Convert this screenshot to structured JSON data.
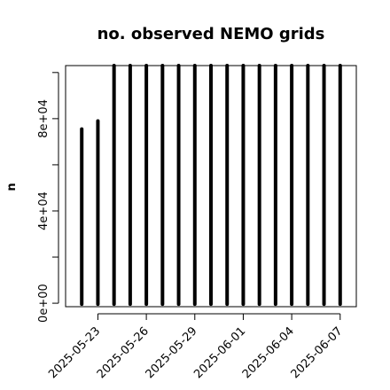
{
  "chart_data": {
    "type": "bar",
    "title": "no. observed NEMO grids",
    "xlabel": "",
    "ylabel": "n",
    "x": [
      "2025-05-22",
      "2025-05-23",
      "2025-05-24",
      "2025-05-25",
      "2025-05-26",
      "2025-05-27",
      "2025-05-28",
      "2025-05-29",
      "2025-05-30",
      "2025-05-31",
      "2025-06-01",
      "2025-06-02",
      "2025-06-03",
      "2025-06-04",
      "2025-06-05",
      "2025-06-06",
      "2025-06-07"
    ],
    "values": [
      75500,
      79000,
      103000,
      103000,
      103000,
      103000,
      103000,
      103000,
      103000,
      103000,
      103000,
      103000,
      103000,
      103000,
      103000,
      103000,
      103000
    ],
    "ylim": [
      -1500,
      103000
    ],
    "xlim": [
      "2025-05-21",
      "2025-06-08"
    ],
    "y_ticks": [
      0,
      20000,
      40000,
      60000,
      80000,
      100000
    ],
    "y_tick_labels": [
      "0e+00",
      "",
      "4e+04",
      "",
      "8e+04",
      ""
    ],
    "x_ticks": [
      "2025-05-23",
      "2025-05-26",
      "2025-05-29",
      "2025-06-01",
      "2025-06-04",
      "2025-06-07"
    ],
    "x_tick_labels": [
      "2025-05-23",
      "2025-05-26",
      "2025-05-29",
      "2025-06-01",
      "2025-06-04",
      "2025-06-07"
    ],
    "grid": false,
    "legend": "none"
  }
}
